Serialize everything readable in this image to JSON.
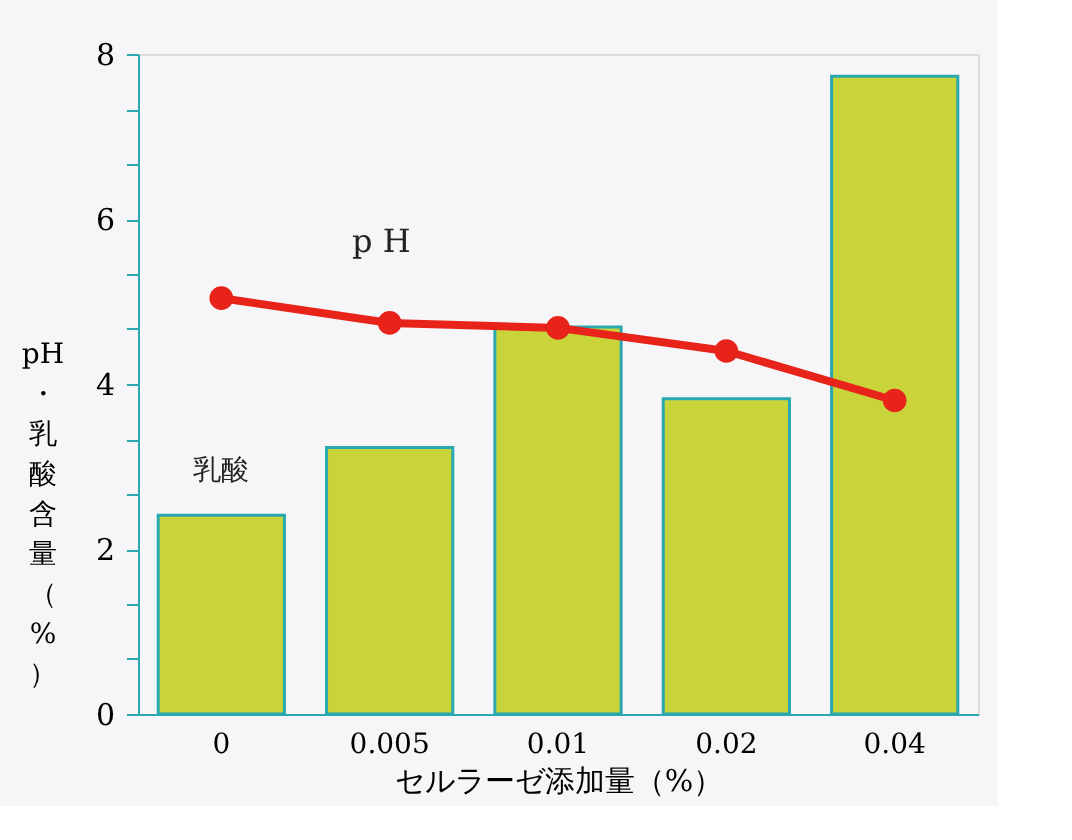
{
  "chart_data": {
    "type": "bar",
    "xlabel": "セルラーゼ添加量（%）",
    "ylabel": "pH・乳酸含量（%）",
    "categories": [
      "0",
      "0.005",
      "0.01",
      "0.02",
      "0.04"
    ],
    "series": [
      {
        "name": "乳酸",
        "color": "#c8d43a",
        "values": [
          2.41,
          3.23,
          4.69,
          3.82,
          7.73
        ]
      },
      {
        "name": "p H",
        "type": "line",
        "color": "#e8231a",
        "marker": "circle",
        "values": [
          5.04,
          4.74,
          4.68,
          4.4,
          3.8
        ]
      }
    ],
    "ylim": [
      0,
      8
    ],
    "yticks": [
      0,
      {
        "value": 0.667,
        "label": null
      },
      {
        "value": 1.333,
        "label": null
      },
      2,
      {
        "value": 2.667,
        "label": null
      },
      {
        "value": 3.333,
        "label": null
      },
      4,
      {
        "value": 4.667,
        "label": null
      },
      {
        "value": 5.333,
        "label": null
      },
      6,
      {
        "value": 6.667,
        "label": null
      },
      {
        "value": 7.333,
        "label": null
      },
      8
    ],
    "grid": false
  }
}
